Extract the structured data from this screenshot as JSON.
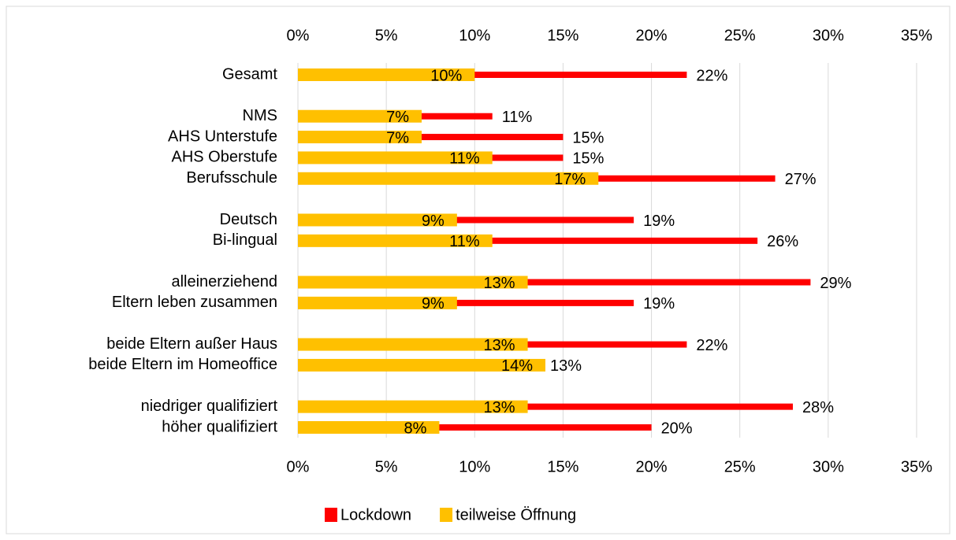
{
  "chart_data": {
    "type": "bar",
    "orientation": "horizontal",
    "overlap": true,
    "categories": [
      "Gesamt",
      null,
      "NMS",
      "AHS Unterstufe",
      "AHS Oberstufe",
      "Berufsschule",
      null,
      "Deutsch",
      "Bi-lingual",
      null,
      "alleinerziehend",
      "Eltern leben zusammen",
      null,
      "beide Eltern außer Haus",
      "beide Eltern im Homeoffice",
      null,
      "niedriger qualifiziert",
      "höher qualifiziert"
    ],
    "series": [
      {
        "name": "Lockdown",
        "color": "#ff0000",
        "values": [
          22,
          null,
          11,
          15,
          15,
          27,
          null,
          19,
          26,
          null,
          29,
          19,
          null,
          22,
          13,
          null,
          28,
          20
        ],
        "value_labels": [
          "22%",
          null,
          "11%",
          "15%",
          "15%",
          "27%",
          null,
          "19%",
          "26%",
          null,
          "29%",
          "19%",
          null,
          "22%",
          "13%",
          null,
          "28%",
          "20%"
        ]
      },
      {
        "name": "teilweise Öffnung",
        "color": "#ffc000",
        "values": [
          10,
          null,
          7,
          7,
          11,
          17,
          null,
          9,
          11,
          null,
          13,
          9,
          null,
          13,
          14,
          null,
          13,
          8
        ],
        "value_labels": [
          "10%",
          null,
          "7%",
          "7%",
          "11%",
          "17%",
          null,
          "9%",
          "11%",
          null,
          "13%",
          "9%",
          null,
          "13%",
          "14%",
          null,
          "13%",
          "8%"
        ]
      }
    ],
    "xlim": [
      0,
      35
    ],
    "xticks": [
      {
        "value": 0,
        "label": "0%"
      },
      {
        "value": 5,
        "label": "5%"
      },
      {
        "value": 10,
        "label": "10%"
      },
      {
        "value": 15,
        "label": "15%"
      },
      {
        "value": 20,
        "label": "20%"
      },
      {
        "value": 25,
        "label": "25%"
      },
      {
        "value": 30,
        "label": "30%"
      },
      {
        "value": 35,
        "label": "35%"
      }
    ],
    "grid": true,
    "legend": "bottom"
  }
}
